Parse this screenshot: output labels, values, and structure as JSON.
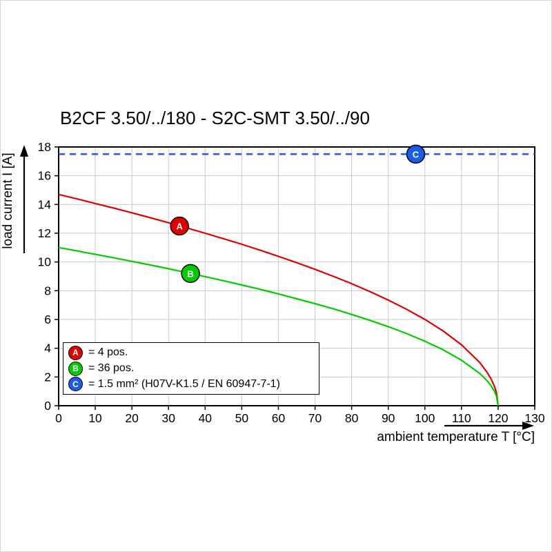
{
  "title": "B2CF 3.50/../180 - S2C-SMT 3.50/../90",
  "chart_data": {
    "type": "line",
    "title": "B2CF 3.50/../180 - S2C-SMT 3.50/../90",
    "xlabel": "ambient temperature T [°C]",
    "ylabel": "load current I [A]",
    "xlim": [
      0,
      130
    ],
    "ylim": [
      0,
      18
    ],
    "xticks": [
      0,
      10,
      20,
      30,
      40,
      50,
      60,
      70,
      80,
      90,
      100,
      110,
      120,
      130
    ],
    "yticks": [
      0,
      2,
      4,
      6,
      8,
      10,
      12,
      14,
      16,
      18
    ],
    "grid": true,
    "legend_position": "inside-bottom-left",
    "series": [
      {
        "name": "A",
        "label": "= 4 pos.",
        "color": "#e10000",
        "style": "solid",
        "marker": {
          "x": 33,
          "y": 12.5
        },
        "points": [
          [
            0,
            14.7
          ],
          [
            5,
            14.39
          ],
          [
            10,
            14.07
          ],
          [
            15,
            13.75
          ],
          [
            20,
            13.42
          ],
          [
            25,
            13.08
          ],
          [
            30,
            12.73
          ],
          [
            35,
            12.37
          ],
          [
            40,
            12.0
          ],
          [
            45,
            11.62
          ],
          [
            50,
            11.23
          ],
          [
            55,
            10.82
          ],
          [
            60,
            10.39
          ],
          [
            65,
            9.95
          ],
          [
            70,
            9.49
          ],
          [
            75,
            9.0
          ],
          [
            80,
            8.49
          ],
          [
            85,
            7.94
          ],
          [
            90,
            7.35
          ],
          [
            95,
            6.71
          ],
          [
            100,
            6.0
          ],
          [
            105,
            5.2
          ],
          [
            110,
            4.24
          ],
          [
            115,
            3.0
          ],
          [
            117,
            2.32
          ],
          [
            118,
            1.9
          ],
          [
            119,
            1.34
          ],
          [
            119.5,
            0.95
          ],
          [
            120,
            0
          ]
        ]
      },
      {
        "name": "B",
        "label": "= 36 pos.",
        "color": "#00cc00",
        "style": "solid",
        "marker": {
          "x": 36,
          "y": 9.2
        },
        "points": [
          [
            0,
            11.0
          ],
          [
            5,
            10.77
          ],
          [
            10,
            10.53
          ],
          [
            15,
            10.29
          ],
          [
            20,
            10.04
          ],
          [
            25,
            9.79
          ],
          [
            30,
            9.53
          ],
          [
            35,
            9.26
          ],
          [
            40,
            8.98
          ],
          [
            45,
            8.7
          ],
          [
            50,
            8.4
          ],
          [
            55,
            8.1
          ],
          [
            60,
            7.78
          ],
          [
            65,
            7.44
          ],
          [
            70,
            7.1
          ],
          [
            75,
            6.74
          ],
          [
            80,
            6.35
          ],
          [
            85,
            5.94
          ],
          [
            90,
            5.5
          ],
          [
            95,
            5.02
          ],
          [
            100,
            4.49
          ],
          [
            105,
            3.89
          ],
          [
            110,
            3.17
          ],
          [
            115,
            2.24
          ],
          [
            117,
            1.74
          ],
          [
            118,
            1.42
          ],
          [
            119,
            1.0
          ],
          [
            119.5,
            0.71
          ],
          [
            120,
            0
          ]
        ]
      },
      {
        "name": "C",
        "label": "= 1.5 mm² (H07V-K1.5 / EN 60947-7-1)",
        "color": "#1a5ce8",
        "style": "dashed",
        "marker": {
          "x": 97.5,
          "y": 17.5
        },
        "points": [
          [
            0,
            17.5
          ],
          [
            130,
            17.5
          ]
        ]
      }
    ]
  }
}
